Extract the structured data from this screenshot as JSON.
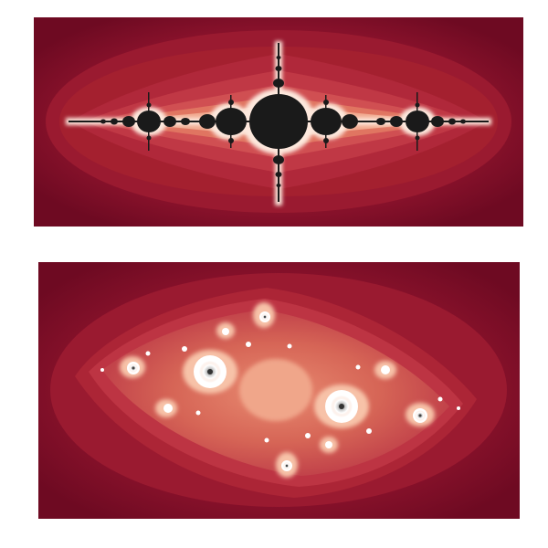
{
  "colors": {
    "background": "#ffffff",
    "outer_dark": "#6e0a22",
    "band_1": "#86112a",
    "band_2": "#9a1a30",
    "band_3": "#b0283a",
    "band_4": "#c63e48",
    "band_5": "#d65d58",
    "band_6": "#e6866f",
    "band_7": "#f2b79c",
    "glow": "#fde8dd",
    "interior": "#1a1a1a"
  },
  "images": [
    {
      "subject": "julia-set-basilica-like",
      "panel": "top"
    },
    {
      "subject": "julia-set-spiral-dust",
      "panel": "bottom"
    }
  ]
}
